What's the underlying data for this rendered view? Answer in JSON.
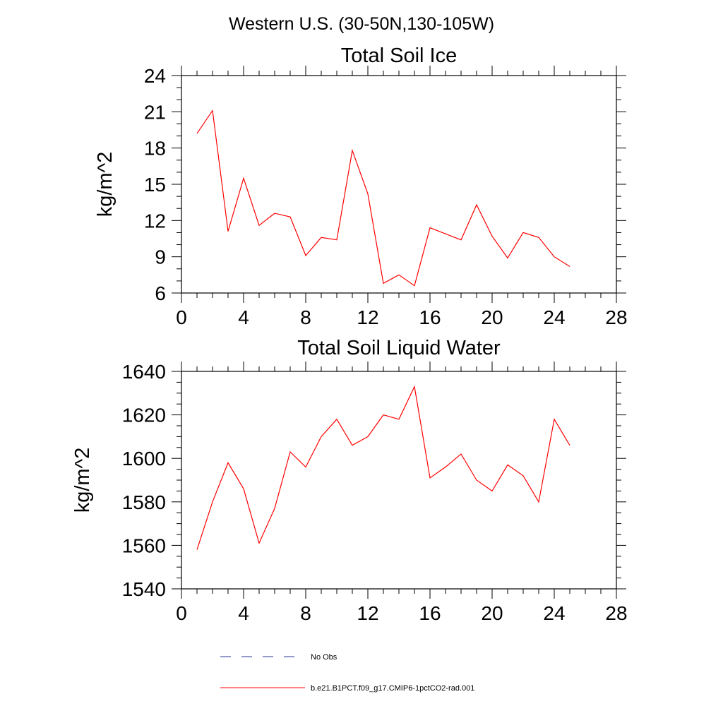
{
  "figure": {
    "suptitle": "Western U.S. (30-50N,130-105W)"
  },
  "chart_data": [
    {
      "type": "line",
      "title": "Total Soil Ice",
      "xlabel": "",
      "ylabel": "kg/m^2",
      "xlim": [
        0,
        28
      ],
      "ylim": [
        6,
        24
      ],
      "xticks": [
        0,
        4,
        8,
        12,
        16,
        20,
        24,
        28
      ],
      "yticks": [
        6,
        9,
        12,
        15,
        18,
        21,
        24
      ],
      "x_minor_step": 1,
      "y_minor_step": 1,
      "series": [
        {
          "name": "b.e21.B1PCT.f09_g17.CMIP6-1pctCO2-rad.001",
          "color": "#ff0000",
          "x": [
            1,
            2,
            3,
            4,
            5,
            6,
            7,
            8,
            9,
            10,
            11,
            12,
            13,
            14,
            15,
            16,
            17,
            18,
            19,
            20,
            21,
            22,
            23,
            24,
            25
          ],
          "y": [
            19.2,
            21.1,
            11.1,
            15.5,
            11.6,
            12.6,
            12.3,
            9.1,
            10.6,
            10.4,
            17.8,
            14.2,
            6.8,
            7.5,
            6.6,
            11.4,
            10.9,
            10.4,
            13.3,
            10.7,
            8.9,
            11.0,
            10.6,
            9.0,
            8.2
          ]
        }
      ]
    },
    {
      "type": "line",
      "title": "Total Soil Liquid Water",
      "xlabel": "",
      "ylabel": "kg/m^2",
      "xlim": [
        0,
        28
      ],
      "ylim": [
        1540,
        1640
      ],
      "xticks": [
        0,
        4,
        8,
        12,
        16,
        20,
        24,
        28
      ],
      "yticks": [
        1540,
        1560,
        1580,
        1600,
        1620,
        1640
      ],
      "x_minor_step": 1,
      "y_minor_step": 5,
      "series": [
        {
          "name": "b.e21.B1PCT.f09_g17.CMIP6-1pctCO2-rad.001",
          "color": "#ff0000",
          "x": [
            1,
            2,
            3,
            4,
            5,
            6,
            7,
            8,
            9,
            10,
            11,
            12,
            13,
            14,
            15,
            16,
            17,
            18,
            19,
            20,
            21,
            22,
            23,
            24,
            25
          ],
          "y": [
            1558,
            1580,
            1598,
            1586,
            1561,
            1577,
            1603,
            1596,
            1610,
            1618,
            1606,
            1610,
            1620,
            1618,
            1633,
            1591,
            1596,
            1602,
            1590,
            1585,
            1597,
            1592,
            1580,
            1618,
            1606
          ]
        }
      ]
    }
  ],
  "legend": {
    "placement": "bottom",
    "items": [
      {
        "label": "No Obs",
        "color": "#283593",
        "style": "dashed"
      },
      {
        "label": "b.e21.B1PCT.f09_g17.CMIP6-1pctCO2-rad.001",
        "color": "#ff0000",
        "style": "solid"
      }
    ]
  }
}
